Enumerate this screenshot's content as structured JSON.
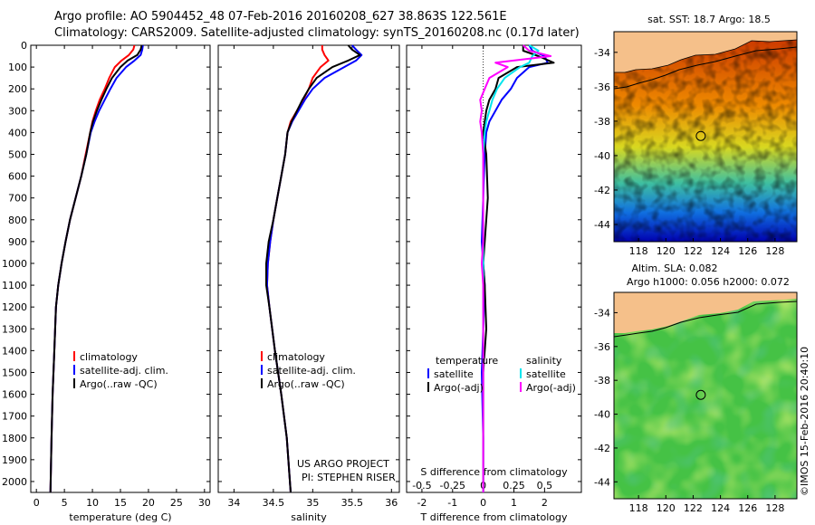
{
  "header": {
    "line1": "Argo profile: AO 5904452_48 07-Feb-2016 20160208_627 38.863S 122.561E",
    "line2": "Climatology: CARS2009. Satellite-adjusted climatology: synTS_20160208.nc (0.17d later)"
  },
  "credits": {
    "project": "US ARGO PROJECT",
    "pi": "PI: STEPHEN RISER"
  },
  "watermark": "©IMOS 15-Feb-2016 20:40:10",
  "colors": {
    "climatology": "#ff0000",
    "satellite": "#0000ff",
    "argo": "#000000",
    "sal_satellite": "#00e5ee",
    "sal_argo": "#ff00ff",
    "land": "#f5c08a"
  },
  "chart_data": [
    {
      "type": "line",
      "xlabel": "temperature (deg C)",
      "ylabel": "",
      "xlim": [
        -1,
        31
      ],
      "ylim": [
        2050,
        0
      ],
      "xticks": [
        0,
        5,
        10,
        15,
        20,
        25,
        30
      ],
      "yticks": [
        0,
        100,
        200,
        300,
        400,
        500,
        600,
        700,
        800,
        900,
        1000,
        1100,
        1200,
        1300,
        1400,
        1500,
        1600,
        1700,
        1800,
        1900,
        2000
      ],
      "legend": [
        "climatology",
        "satellite-adj. clim.",
        "Argo(..raw -QC)"
      ],
      "series": [
        {
          "name": "climatology",
          "color": "#ff0000",
          "x": [
            17.5,
            17.3,
            16.5,
            15.2,
            14.0,
            13.0,
            12.2,
            11.3,
            10.6,
            10.0,
            9.6,
            8.8,
            8.0,
            7.0,
            6.0,
            5.2,
            4.5,
            3.9,
            3.5,
            3.2,
            2.9,
            2.7,
            2.5
          ],
          "y": [
            0,
            20,
            45,
            70,
            100,
            150,
            200,
            250,
            300,
            350,
            400,
            500,
            600,
            700,
            800,
            900,
            1000,
            1100,
            1200,
            1400,
            1600,
            1800,
            2050
          ]
        },
        {
          "name": "satellite-adj. clim.",
          "color": "#0000ff",
          "x": [
            19.0,
            18.9,
            18.6,
            17.5,
            16.0,
            14.3,
            13.2,
            12.2,
            11.2,
            10.4,
            9.7,
            8.9,
            8.0,
            7.0,
            6.0,
            5.2,
            4.5,
            3.9,
            3.5,
            3.2,
            2.9,
            2.7,
            2.5
          ],
          "y": [
            0,
            20,
            45,
            70,
            100,
            150,
            200,
            250,
            300,
            350,
            400,
            500,
            600,
            700,
            800,
            900,
            1000,
            1100,
            1200,
            1400,
            1600,
            1800,
            2050
          ]
        },
        {
          "name": "Argo(..raw -QC)",
          "color": "#000000",
          "x": [
            18.8,
            18.6,
            18.0,
            16.3,
            15.0,
            13.5,
            12.5,
            11.6,
            10.8,
            10.1,
            9.6,
            8.9,
            8.0,
            7.0,
            6.0,
            5.2,
            4.5,
            3.9,
            3.5,
            3.2,
            2.9,
            2.7,
            2.5
          ],
          "y": [
            0,
            20,
            45,
            70,
            100,
            150,
            200,
            250,
            300,
            350,
            400,
            500,
            600,
            700,
            800,
            900,
            1000,
            1100,
            1200,
            1400,
            1600,
            1800,
            2050
          ]
        }
      ]
    },
    {
      "type": "line",
      "xlabel": "salinity",
      "ylabel": "",
      "xlim": [
        33.8,
        36.1
      ],
      "ylim": [
        2050,
        0
      ],
      "xticks": [
        34,
        34.5,
        35,
        35.5,
        36
      ],
      "xticklabels": [
        "34",
        "34.5",
        "35",
        "35.5",
        "36"
      ],
      "legend": [
        "climatology",
        "satellite-adj. clim.",
        "Argo(..raw -QC)"
      ],
      "series": [
        {
          "name": "climatology",
          "color": "#ff0000",
          "x": [
            35.12,
            35.12,
            35.15,
            35.2,
            35.1,
            35.0,
            34.95,
            34.88,
            34.8,
            34.72,
            34.68,
            34.65,
            34.6,
            34.55,
            34.5,
            34.46,
            34.43,
            34.42,
            34.45,
            34.52,
            34.6,
            34.67,
            34.72
          ],
          "y": [
            0,
            20,
            45,
            70,
            100,
            150,
            200,
            250,
            300,
            350,
            400,
            500,
            600,
            700,
            800,
            900,
            1000,
            1100,
            1200,
            1400,
            1600,
            1800,
            2050
          ]
        },
        {
          "name": "satellite-adj. clim.",
          "color": "#0000ff",
          "x": [
            35.5,
            35.55,
            35.62,
            35.55,
            35.4,
            35.15,
            35.0,
            34.9,
            34.82,
            34.74,
            34.68,
            34.65,
            34.6,
            34.55,
            34.5,
            34.46,
            34.43,
            34.42,
            34.45,
            34.52,
            34.6,
            34.67,
            34.72
          ],
          "y": [
            0,
            20,
            45,
            70,
            100,
            150,
            200,
            250,
            300,
            350,
            400,
            500,
            600,
            700,
            800,
            900,
            1000,
            1100,
            1200,
            1400,
            1600,
            1800,
            2050
          ]
        },
        {
          "name": "Argo(..raw -QC)",
          "color": "#000000",
          "x": [
            35.45,
            35.5,
            35.6,
            35.45,
            35.25,
            35.05,
            34.95,
            34.87,
            34.8,
            34.73,
            34.68,
            34.65,
            34.6,
            34.55,
            34.5,
            34.44,
            34.41,
            34.41,
            34.45,
            34.52,
            34.6,
            34.67,
            34.72
          ],
          "y": [
            0,
            20,
            45,
            70,
            100,
            150,
            200,
            250,
            300,
            350,
            400,
            500,
            600,
            700,
            800,
            900,
            1000,
            1100,
            1200,
            1400,
            1600,
            1800,
            2050
          ]
        }
      ]
    },
    {
      "type": "line",
      "xlabel": "T difference from climatology",
      "xlabel2": "S difference from climatology",
      "xlim": [
        -2.5,
        3.2
      ],
      "ylim": [
        2050,
        0
      ],
      "xticks": [
        -2,
        -1,
        0,
        1,
        2
      ],
      "xticks2": [
        -0.5,
        -0.25,
        0,
        0.25,
        0.5
      ],
      "xticklabels2": [
        "-0.5",
        "-0.25",
        "0",
        "0.25",
        "0.5"
      ],
      "legend_titles": [
        "temperature",
        "salinity"
      ],
      "legend": [
        "satellite",
        "Argo(-adj)",
        "satellite",
        "Argo(-adj)"
      ],
      "series": [
        {
          "name": "temperature satellite",
          "color": "#0000ff",
          "x": [
            1.5,
            1.6,
            2.0,
            2.1,
            1.5,
            1.1,
            0.9,
            0.6,
            0.4,
            0.2,
            0.1,
            0.05,
            0.0,
            -0.05,
            0.0,
            0.05,
            0.0,
            -0.05,
            0.0,
            0.0
          ],
          "y": [
            0,
            25,
            50,
            80,
            100,
            150,
            200,
            250,
            300,
            350,
            400,
            500,
            700,
            900,
            1000,
            1100,
            1300,
            1500,
            1800,
            2050
          ]
        },
        {
          "name": "temperature Argo(-adj)",
          "color": "#000000",
          "x": [
            1.3,
            1.3,
            1.8,
            2.3,
            1.1,
            0.5,
            0.4,
            0.2,
            0.1,
            0.05,
            0.0,
            0.1,
            0.15,
            0.05,
            0.0,
            0.05,
            0.1,
            0.0,
            0.0,
            0.0
          ],
          "y": [
            0,
            25,
            50,
            80,
            100,
            150,
            200,
            250,
            300,
            350,
            400,
            500,
            700,
            900,
            1000,
            1100,
            1300,
            1500,
            1800,
            2050
          ]
        },
        {
          "name": "salinity satellite",
          "color": "#00e5ee",
          "x": [
            1.5,
            1.8,
            1.6,
            1.5,
            1.2,
            0.7,
            0.45,
            0.3,
            0.2,
            0.1,
            0.05,
            0.0,
            0.0,
            0.0,
            0.0,
            0.0,
            0.0,
            0.0,
            0.0,
            0.0
          ],
          "y": [
            0,
            25,
            50,
            80,
            100,
            150,
            200,
            250,
            300,
            350,
            400,
            500,
            700,
            900,
            1000,
            1100,
            1300,
            1500,
            1800,
            2050
          ]
        },
        {
          "name": "salinity Argo(-adj)",
          "color": "#ff00ff",
          "x": [
            1.3,
            1.5,
            2.2,
            0.4,
            0.8,
            0.2,
            0.05,
            -0.1,
            -0.05,
            -0.1,
            -0.05,
            0.0,
            0.0,
            0.0,
            -0.05,
            0.0,
            0.0,
            0.0,
            0.0,
            0.0
          ],
          "y": [
            0,
            25,
            50,
            80,
            100,
            150,
            200,
            250,
            300,
            350,
            400,
            500,
            700,
            900,
            1000,
            1100,
            1300,
            1500,
            1800,
            2050
          ]
        }
      ]
    },
    {
      "type": "heatmap",
      "title": "sat. SST: 18.7 Argo: 18.5",
      "xticks": [
        118,
        120,
        122,
        124,
        126,
        128
      ],
      "yticks": [
        -34,
        -36,
        -38,
        -40,
        -42,
        -44
      ],
      "xlim": [
        116.2,
        129.6
      ],
      "ylim": [
        -45,
        -32.8
      ],
      "marker": {
        "lon": 122.56,
        "lat": -38.86
      }
    },
    {
      "type": "heatmap",
      "title": "Altim. SLA: 0.082",
      "subtitle": "Argo h1000: 0.056 h2000: 0.072",
      "xticks": [
        118,
        120,
        122,
        124,
        126,
        128
      ],
      "yticks": [
        -34,
        -36,
        -38,
        -40,
        -42,
        -44
      ],
      "xlim": [
        116.2,
        129.6
      ],
      "ylim": [
        -45,
        -32.8
      ],
      "marker": {
        "lon": 122.56,
        "lat": -38.86
      }
    }
  ]
}
